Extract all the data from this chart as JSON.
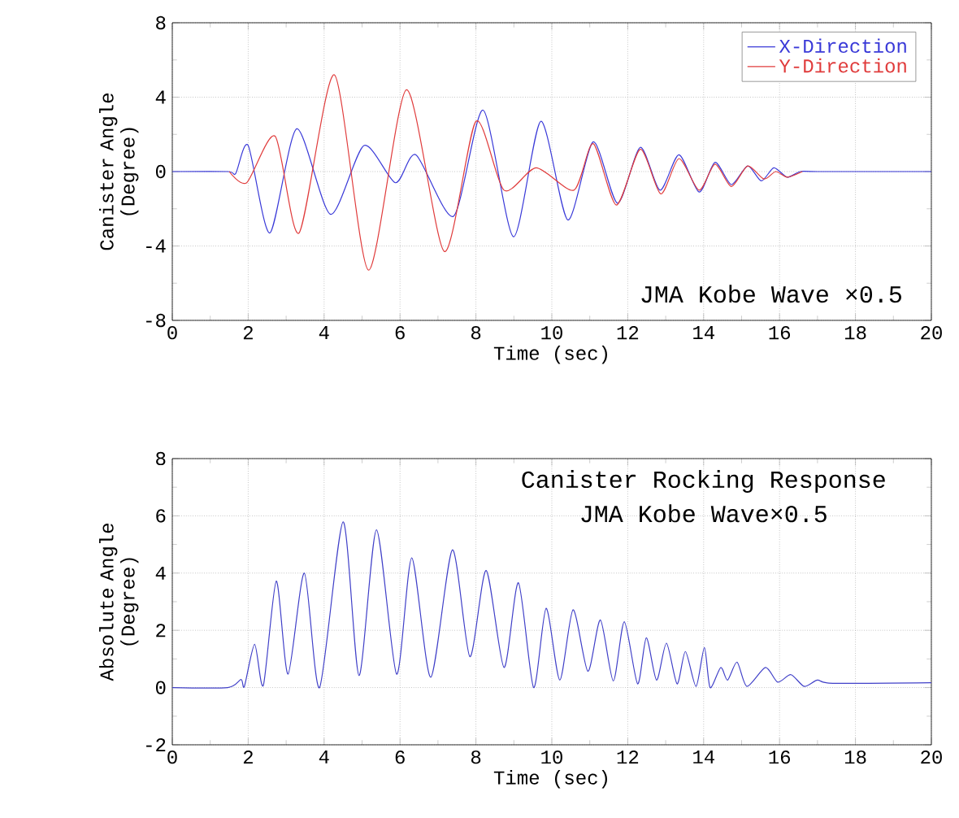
{
  "chart_data": [
    {
      "type": "line",
      "xlabel": "Time (sec)",
      "ylabel": "Canister Angle (Degree)",
      "xlim": [
        0,
        20
      ],
      "ylim": [
        -8,
        8
      ],
      "xticks": [
        0,
        2,
        4,
        6,
        8,
        10,
        12,
        14,
        16,
        18,
        20
      ],
      "yticks": [
        -8,
        -4,
        0,
        4,
        8
      ],
      "grid": true,
      "legend": "top right",
      "line_style": "solid",
      "marker": "none",
      "annotations": [
        "JMA Kobe Wave ×0.5"
      ],
      "series": [
        {
          "name": "X-Direction",
          "color": "#3a3ad8",
          "x": [
            0,
            1.46,
            1.67,
            2.0,
            2.57,
            3.28,
            4.17,
            5.05,
            5.88,
            6.42,
            7.41,
            8.19,
            8.99,
            9.71,
            10.42,
            11.09,
            11.73,
            12.33,
            12.85,
            13.35,
            13.88,
            14.3,
            14.73,
            15.16,
            15.52,
            15.85,
            16.2,
            16.55,
            17.0,
            20
          ],
          "values": [
            0,
            0,
            -0.1,
            1.4,
            -3.3,
            2.3,
            -2.3,
            1.4,
            -0.6,
            0.9,
            -2.4,
            3.3,
            -3.5,
            2.7,
            -2.6,
            1.6,
            -1.7,
            1.3,
            -1.0,
            0.9,
            -1.1,
            0.5,
            -0.7,
            0.3,
            -0.5,
            0.2,
            -0.3,
            0,
            0,
            0
          ]
        },
        {
          "name": "Y-Direction",
          "color": "#e03c3c",
          "x": [
            1.5,
            1.96,
            2.71,
            3.34,
            4.27,
            5.17,
            6.17,
            7.17,
            8.0,
            8.74,
            9.59,
            10.58,
            11.09,
            11.7,
            12.33,
            12.87,
            13.35,
            13.88,
            14.3,
            14.73,
            15.16,
            15.59,
            15.9,
            16.2,
            16.6
          ],
          "values": [
            0,
            -0.6,
            1.9,
            -3.3,
            5.2,
            -5.3,
            4.4,
            -4.3,
            2.7,
            -1.0,
            0.2,
            -1.0,
            1.5,
            -1.8,
            1.2,
            -1.2,
            0.7,
            -1.0,
            0.4,
            -0.8,
            0.3,
            -0.4,
            0,
            -0.3,
            0
          ]
        }
      ]
    },
    {
      "type": "line",
      "xlabel": "Time (sec)",
      "ylabel": "Absolute Angle (Degree)",
      "xlim": [
        0,
        20
      ],
      "ylim": [
        -2,
        8
      ],
      "xticks": [
        0,
        2,
        4,
        6,
        8,
        10,
        12,
        14,
        16,
        18,
        20
      ],
      "yticks": [
        -2,
        0,
        2,
        4,
        6,
        8
      ],
      "grid": true,
      "line_style": "solid",
      "marker": "none",
      "annotations": [
        "Canister Rocking Response",
        "JMA Kobe Wave×0.5"
      ],
      "series": [
        {
          "color": "#4040c8",
          "x": [
            0,
            1.46,
            1.81,
            1.9,
            2.17,
            2.4,
            2.74,
            3.05,
            3.48,
            3.88,
            4.5,
            4.92,
            5.38,
            5.91,
            6.31,
            6.81,
            7.38,
            7.84,
            8.27,
            8.74,
            9.12,
            9.52,
            9.85,
            10.21,
            10.56,
            10.95,
            11.28,
            11.62,
            11.91,
            12.26,
            12.49,
            12.76,
            13.02,
            13.3,
            13.52,
            13.8,
            14.02,
            14.17,
            14.45,
            14.63,
            14.88,
            15.14,
            15.63,
            15.95,
            16.3,
            16.65,
            17.0,
            17.4,
            20
          ],
          "values": [
            0,
            0,
            0.28,
            0.04,
            1.51,
            0.08,
            3.72,
            0.47,
            4.0,
            0,
            5.79,
            0.42,
            5.51,
            0.47,
            4.53,
            0.36,
            4.81,
            1.08,
            4.09,
            0.7,
            3.66,
            0,
            2.77,
            0.26,
            2.72,
            0.57,
            2.36,
            0.23,
            2.3,
            0.13,
            1.74,
            0.26,
            1.55,
            0.13,
            1.26,
            0.04,
            1.4,
            0,
            0.7,
            0.26,
            0.89,
            0.04,
            0.7,
            0.19,
            0.45,
            0.04,
            0.26,
            0.15,
            0.17
          ]
        }
      ]
    }
  ]
}
